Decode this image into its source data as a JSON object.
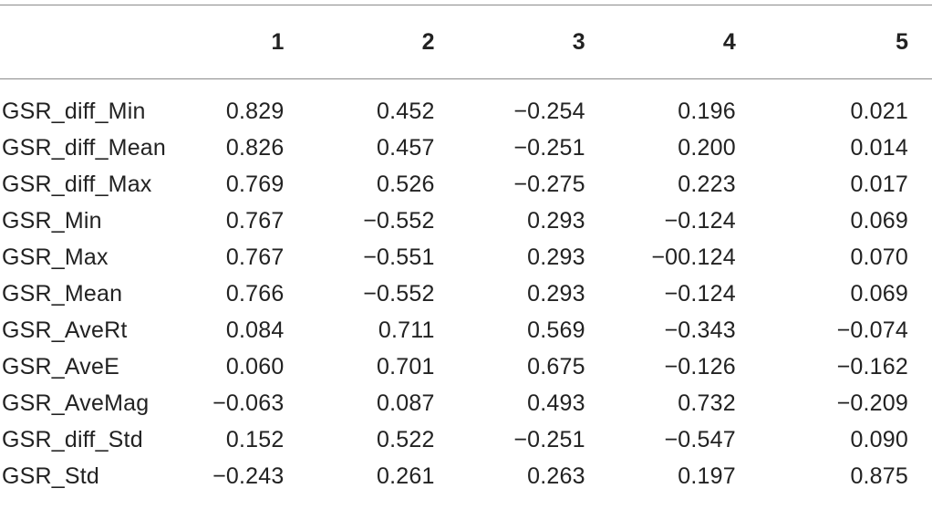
{
  "table": {
    "headers": [
      "",
      "1",
      "2",
      "3",
      "4",
      "5"
    ],
    "rows": [
      {
        "label": "GSR_diff_Min",
        "values": [
          "0.829",
          "0.452",
          "−0.254",
          "0.196",
          "0.021"
        ]
      },
      {
        "label": "GSR_diff_Mean",
        "values": [
          "0.826",
          "0.457",
          "−0.251",
          "0.200",
          "0.014"
        ]
      },
      {
        "label": "GSR_diff_Max",
        "values": [
          "0.769",
          "0.526",
          "−0.275",
          "0.223",
          "0.017"
        ]
      },
      {
        "label": "GSR_Min",
        "values": [
          "0.767",
          "−0.552",
          "0.293",
          "−0.124",
          "0.069"
        ]
      },
      {
        "label": "GSR_Max",
        "values": [
          "0.767",
          "−0.551",
          "0.293",
          "−00.124",
          "0.070"
        ]
      },
      {
        "label": "GSR_Mean",
        "values": [
          "0.766",
          "−0.552",
          "0.293",
          "−0.124",
          "0.069"
        ]
      },
      {
        "label": "GSR_AveRt",
        "values": [
          "0.084",
          "0.711",
          "0.569",
          "−0.343",
          "−0.074"
        ]
      },
      {
        "label": "GSR_AveE",
        "values": [
          "0.060",
          "0.701",
          "0.675",
          "−0.126",
          "−0.162"
        ]
      },
      {
        "label": "GSR_AveMag",
        "values": [
          "−0.063",
          "0.087",
          "0.493",
          "0.732",
          "−0.209"
        ]
      },
      {
        "label": "GSR_diff_Std",
        "values": [
          "0.152",
          "0.522",
          "−0.251",
          "−0.547",
          "0.090"
        ]
      },
      {
        "label": "GSR_Std",
        "values": [
          "−0.243",
          "0.261",
          "0.263",
          "0.197",
          "0.875"
        ]
      }
    ]
  }
}
